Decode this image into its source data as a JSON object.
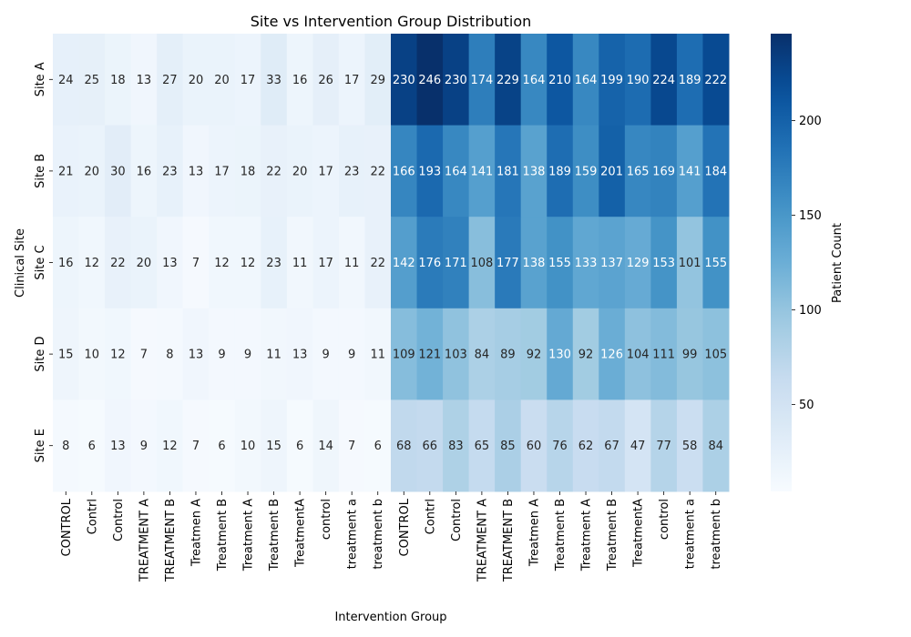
{
  "chart_data": {
    "type": "heatmap",
    "title": "Site vs Intervention Group Distribution",
    "xlabel": "Intervention Group",
    "ylabel": "Clinical Site",
    "colorbar_label": "Patient Count",
    "colorbar_ticks": [
      50,
      100,
      150,
      200
    ],
    "value_range": [
      4,
      246
    ],
    "colormap": "Blues",
    "x": [
      "CONTROL",
      "Contrl",
      "Control",
      "TREATMENT A",
      "TREATMENT B",
      "Treatmen A",
      "Treatment  B",
      "Treatment A",
      "Treatment B",
      "TreatmentA",
      "control",
      "treatment a",
      "treatment b",
      "CONTROL",
      "Contrl",
      "Control",
      "TREATMENT A",
      "TREATMENT B",
      "Treatmen A",
      "Treatment  B",
      "Treatment A",
      "Treatment B",
      "TreatmentA",
      "control",
      "treatment a",
      "treatment b"
    ],
    "y": [
      "Site A",
      "Site B",
      "Site C",
      "Site D",
      "Site E"
    ],
    "values": [
      [
        24,
        25,
        18,
        13,
        27,
        20,
        20,
        17,
        33,
        16,
        26,
        17,
        29,
        230,
        246,
        230,
        174,
        229,
        164,
        210,
        164,
        199,
        190,
        224,
        189,
        222
      ],
      [
        21,
        20,
        30,
        16,
        23,
        13,
        17,
        18,
        22,
        20,
        17,
        23,
        22,
        166,
        193,
        164,
        141,
        181,
        138,
        189,
        159,
        201,
        165,
        169,
        141,
        184
      ],
      [
        16,
        12,
        22,
        20,
        13,
        7,
        12,
        12,
        23,
        11,
        17,
        11,
        22,
        142,
        176,
        171,
        108,
        177,
        138,
        155,
        133,
        137,
        129,
        153,
        101,
        155
      ],
      [
        15,
        10,
        12,
        7,
        8,
        13,
        9,
        9,
        11,
        13,
        9,
        9,
        11,
        109,
        121,
        103,
        84,
        89,
        92,
        130,
        92,
        126,
        104,
        111,
        99,
        105
      ],
      [
        8,
        6,
        13,
        9,
        12,
        7,
        6,
        10,
        15,
        6,
        14,
        7,
        6,
        68,
        66,
        83,
        65,
        85,
        60,
        76,
        62,
        67,
        47,
        77,
        58,
        84
      ]
    ]
  }
}
